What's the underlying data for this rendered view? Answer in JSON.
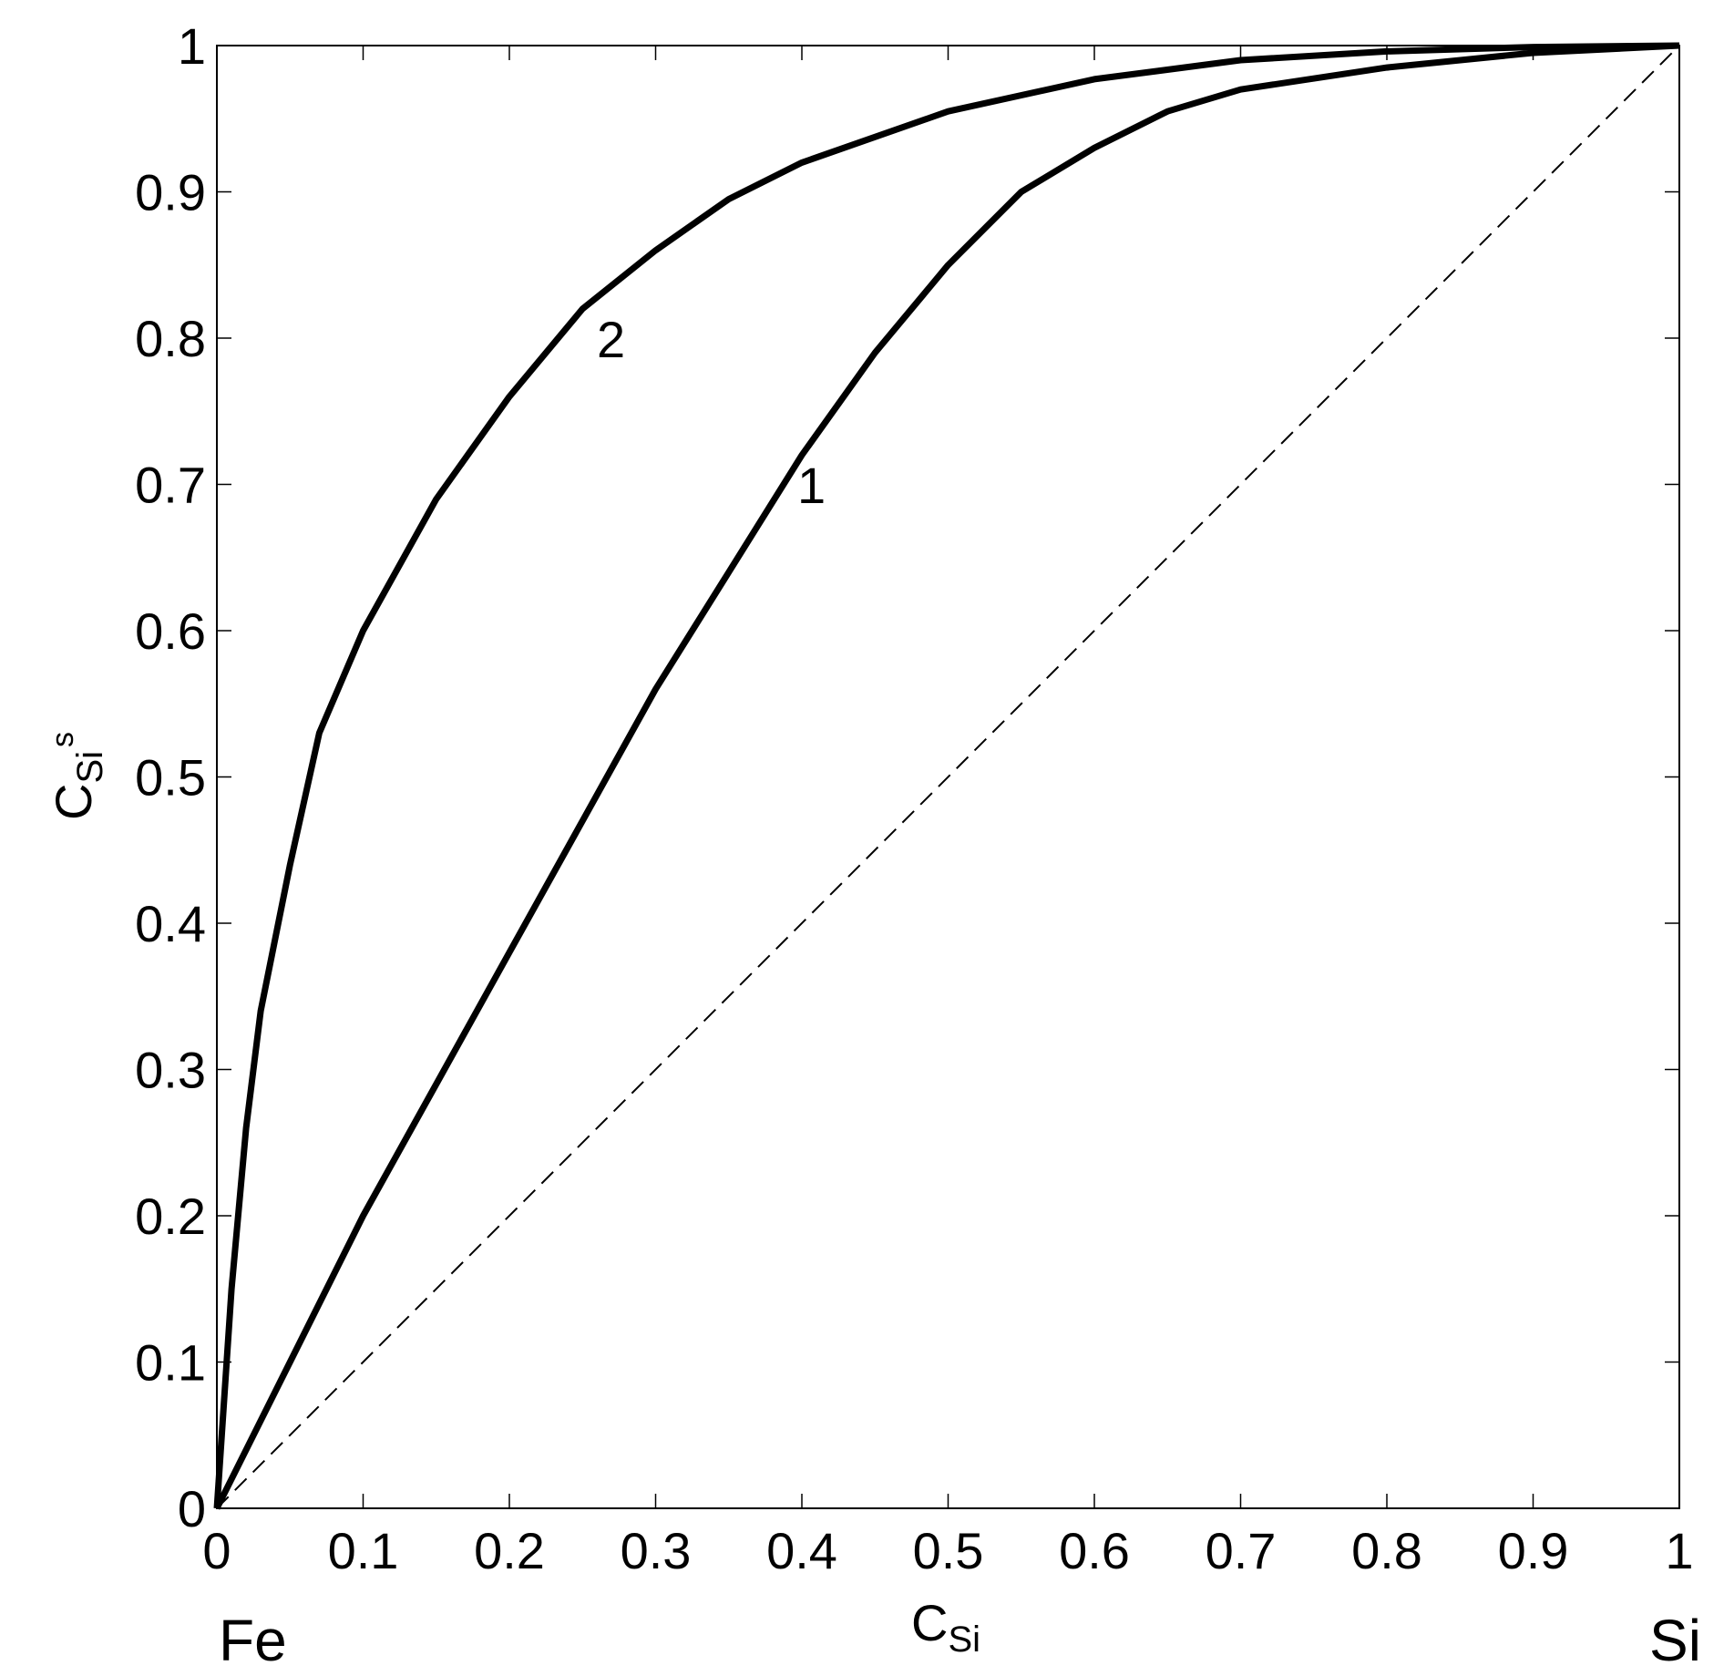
{
  "chart_data": {
    "type": "line",
    "x_label": {
      "main": "C",
      "sub": "Si"
    },
    "y_label": {
      "main": "C",
      "sub": "Si",
      "sup": "s"
    },
    "annotations": [
      "Fe",
      "Si"
    ],
    "xlim": [
      0,
      1
    ],
    "ylim": [
      0,
      1
    ],
    "xticks": [
      0,
      0.1,
      0.2,
      0.3,
      0.4,
      0.5,
      0.6,
      0.7,
      0.8,
      0.9,
      1
    ],
    "yticks": [
      0,
      0.1,
      0.2,
      0.3,
      0.4,
      0.5,
      0.6,
      0.7,
      0.8,
      0.9,
      1
    ],
    "series": [
      {
        "name": "1",
        "color": "#000000",
        "x": [
          0,
          0.05,
          0.1,
          0.15,
          0.2,
          0.25,
          0.3,
          0.35,
          0.4,
          0.45,
          0.5,
          0.55,
          0.6,
          0.65,
          0.7,
          0.8,
          0.9,
          1
        ],
        "values": [
          0,
          0.1,
          0.2,
          0.29,
          0.38,
          0.47,
          0.56,
          0.64,
          0.72,
          0.79,
          0.85,
          0.9,
          0.93,
          0.955,
          0.97,
          0.985,
          0.995,
          1
        ]
      },
      {
        "name": "2",
        "color": "#000000",
        "x": [
          0,
          0.01,
          0.02,
          0.03,
          0.05,
          0.07,
          0.1,
          0.15,
          0.2,
          0.25,
          0.3,
          0.35,
          0.4,
          0.5,
          0.6,
          0.7,
          0.8,
          0.9,
          1
        ],
        "values": [
          0,
          0.15,
          0.26,
          0.34,
          0.44,
          0.53,
          0.6,
          0.69,
          0.76,
          0.82,
          0.86,
          0.895,
          0.92,
          0.955,
          0.977,
          0.99,
          0.996,
          0.999,
          1
        ]
      }
    ],
    "reference_line": {
      "x": [
        0,
        1
      ],
      "values": [
        0,
        1
      ],
      "color": "#000000",
      "dashed": true
    }
  }
}
